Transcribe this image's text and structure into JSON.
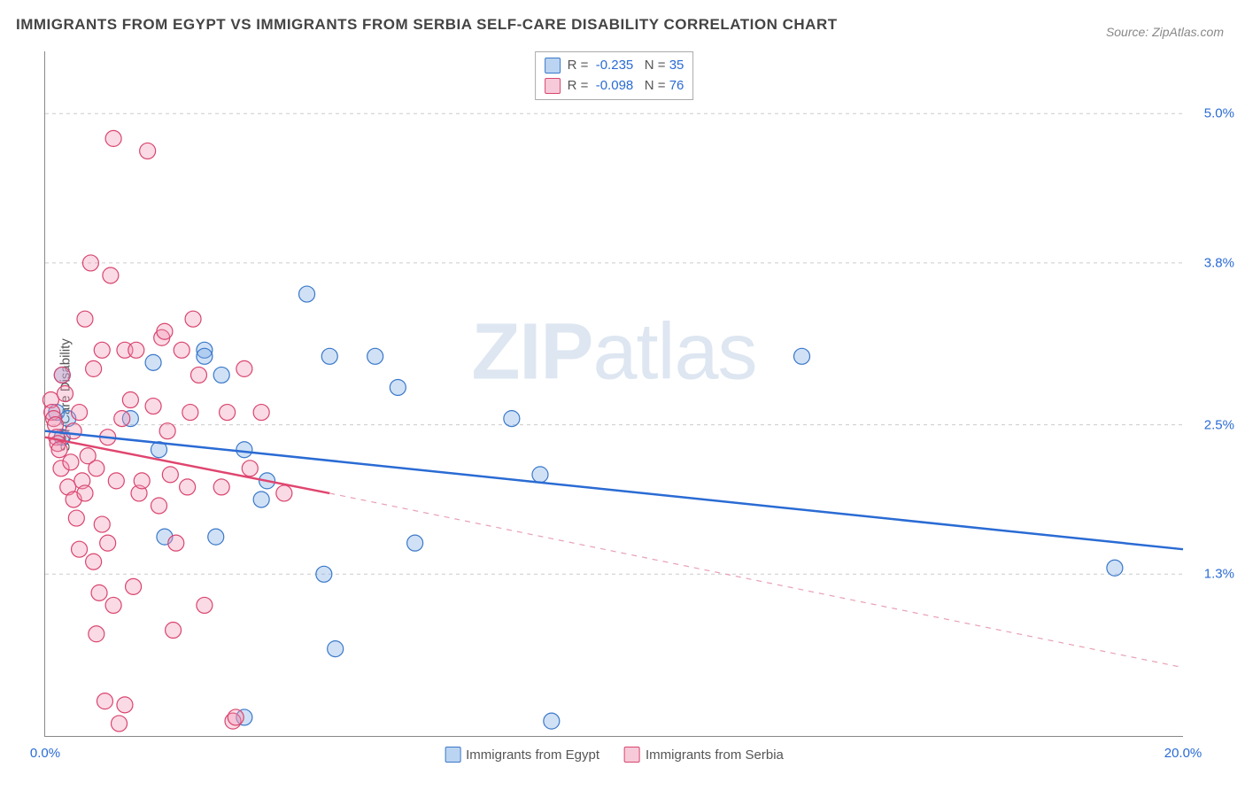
{
  "title": "IMMIGRANTS FROM EGYPT VS IMMIGRANTS FROM SERBIA SELF-CARE DISABILITY CORRELATION CHART",
  "source": "Source: ZipAtlas.com",
  "y_axis_label": "Self-Care Disability",
  "watermark_bold": "ZIP",
  "watermark_rest": "atlas",
  "chart": {
    "type": "scatter",
    "xlim": [
      0.0,
      20.0
    ],
    "ylim": [
      0.0,
      5.5
    ],
    "background_color": "#ffffff",
    "grid_color": "#cccccc",
    "grid_dash": "4 4",
    "marker_radius": 9,
    "x_ticks": [
      {
        "v": 0.0,
        "label": "0.0%"
      },
      {
        "v": 20.0,
        "label": "20.0%"
      }
    ],
    "y_ticks": [
      {
        "v": 1.3,
        "label": "1.3%"
      },
      {
        "v": 2.5,
        "label": "2.5%"
      },
      {
        "v": 3.8,
        "label": "3.8%"
      },
      {
        "v": 5.0,
        "label": "5.0%"
      }
    ],
    "series": [
      {
        "name": "Immigrants from Egypt",
        "color_fill": "rgba(120,170,230,0.35)",
        "color_stroke": "#3a78c9",
        "css_class": "marker-blue",
        "R": "-0.235",
        "N": "35",
        "trend": {
          "x1": 0.0,
          "y1": 2.45,
          "x2": 20.0,
          "y2": 1.5,
          "class": "trend-blue",
          "dash": false
        },
        "points": [
          [
            0.2,
            2.6
          ],
          [
            0.3,
            2.9
          ],
          [
            0.3,
            2.4
          ],
          [
            0.4,
            2.55
          ],
          [
            1.5,
            2.55
          ],
          [
            2.0,
            2.3
          ],
          [
            1.9,
            3.0
          ],
          [
            2.1,
            1.6
          ],
          [
            2.8,
            3.1
          ],
          [
            2.8,
            3.05
          ],
          [
            3.0,
            1.6
          ],
          [
            3.1,
            2.9
          ],
          [
            3.5,
            0.15
          ],
          [
            3.5,
            2.3
          ],
          [
            3.8,
            1.9
          ],
          [
            3.9,
            2.05
          ],
          [
            4.6,
            3.55
          ],
          [
            4.9,
            1.3
          ],
          [
            5.0,
            3.05
          ],
          [
            5.1,
            0.7
          ],
          [
            5.8,
            3.05
          ],
          [
            6.2,
            2.8
          ],
          [
            6.5,
            1.55
          ],
          [
            8.2,
            2.55
          ],
          [
            8.7,
            2.1
          ],
          [
            8.9,
            0.12
          ],
          [
            13.3,
            3.05
          ],
          [
            18.8,
            1.35
          ]
        ]
      },
      {
        "name": "Immigrants from Serbia",
        "color_fill": "rgba(240,150,180,0.35)",
        "color_stroke": "#d9456f",
        "css_class": "marker-pink",
        "R": "-0.098",
        "N": "76",
        "trend": {
          "x1": 0.0,
          "y1": 2.4,
          "x2": 5.0,
          "y2": 1.95,
          "class": "trend-pink",
          "dash": false
        },
        "trend_ext": {
          "x1": 5.0,
          "y1": 1.95,
          "x2": 20.0,
          "y2": 0.55,
          "class": "trend-pink-dash",
          "dash": true
        },
        "points": [
          [
            0.1,
            2.7
          ],
          [
            0.12,
            2.6
          ],
          [
            0.15,
            2.55
          ],
          [
            0.18,
            2.5
          ],
          [
            0.2,
            2.4
          ],
          [
            0.22,
            2.35
          ],
          [
            0.25,
            2.3
          ],
          [
            0.28,
            2.15
          ],
          [
            0.3,
            2.9
          ],
          [
            0.35,
            2.75
          ],
          [
            0.4,
            2.0
          ],
          [
            0.45,
            2.2
          ],
          [
            0.5,
            1.9
          ],
          [
            0.5,
            2.45
          ],
          [
            0.55,
            1.75
          ],
          [
            0.6,
            2.6
          ],
          [
            0.6,
            1.5
          ],
          [
            0.65,
            2.05
          ],
          [
            0.7,
            3.35
          ],
          [
            0.7,
            1.95
          ],
          [
            0.75,
            2.25
          ],
          [
            0.8,
            3.8
          ],
          [
            0.85,
            2.95
          ],
          [
            0.85,
            1.4
          ],
          [
            0.9,
            0.82
          ],
          [
            0.9,
            2.15
          ],
          [
            0.95,
            1.15
          ],
          [
            1.0,
            3.1
          ],
          [
            1.0,
            1.7
          ],
          [
            1.05,
            0.28
          ],
          [
            1.1,
            1.55
          ],
          [
            1.1,
            2.4
          ],
          [
            1.15,
            3.7
          ],
          [
            1.2,
            4.8
          ],
          [
            1.2,
            1.05
          ],
          [
            1.25,
            2.05
          ],
          [
            1.3,
            0.1
          ],
          [
            1.35,
            2.55
          ],
          [
            1.4,
            3.1
          ],
          [
            1.4,
            0.25
          ],
          [
            1.5,
            2.7
          ],
          [
            1.55,
            1.2
          ],
          [
            1.6,
            3.1
          ],
          [
            1.65,
            1.95
          ],
          [
            1.7,
            2.05
          ],
          [
            1.8,
            4.7
          ],
          [
            1.9,
            2.65
          ],
          [
            2.0,
            1.85
          ],
          [
            2.05,
            3.2
          ],
          [
            2.1,
            3.25
          ],
          [
            2.15,
            2.45
          ],
          [
            2.2,
            2.1
          ],
          [
            2.25,
            0.85
          ],
          [
            2.3,
            1.55
          ],
          [
            2.4,
            3.1
          ],
          [
            2.5,
            2.0
          ],
          [
            2.55,
            2.6
          ],
          [
            2.6,
            3.35
          ],
          [
            2.7,
            2.9
          ],
          [
            2.8,
            1.05
          ],
          [
            3.1,
            2.0
          ],
          [
            3.2,
            2.6
          ],
          [
            3.3,
            0.12
          ],
          [
            3.35,
            0.15
          ],
          [
            3.5,
            2.95
          ],
          [
            3.6,
            2.15
          ],
          [
            3.8,
            2.6
          ],
          [
            4.2,
            1.95
          ]
        ]
      }
    ],
    "bottom_legend": [
      {
        "label": "Immigrants from Egypt",
        "swatch": "blue"
      },
      {
        "label": "Immigrants from Serbia",
        "swatch": "pink"
      }
    ]
  }
}
